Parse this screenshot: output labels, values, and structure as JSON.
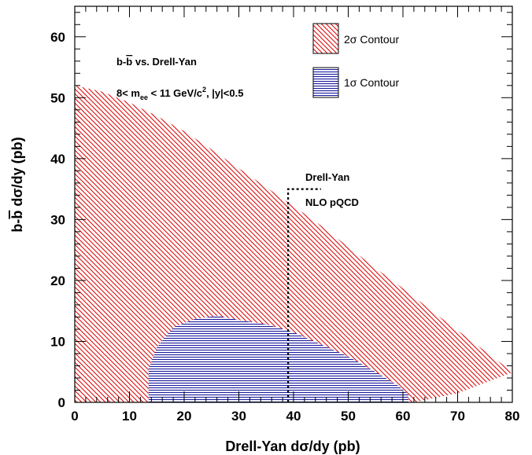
{
  "chart_data": {
    "type": "area",
    "xlabel_main": "Drell-Yan d",
    "xlabel_sym": "σ",
    "xlabel_tail": "/dy (pb)",
    "ylabel_b": "b-",
    "ylabel_bbar": "b",
    "ylabel_sp": " d",
    "ylabel_sym": "σ",
    "ylabel_tail": "/dy (pb)",
    "xlim": [
      0,
      80
    ],
    "ylim": [
      0,
      65
    ],
    "xticks": [
      0,
      10,
      20,
      30,
      40,
      50,
      60,
      70,
      80
    ],
    "xtick_labels": [
      "0",
      "10",
      "20",
      "30",
      "40",
      "50",
      "60",
      "70",
      "80"
    ],
    "yticks": [
      0,
      10,
      20,
      30,
      40,
      50,
      60
    ],
    "ytick_labels": [
      "0",
      "10",
      "20",
      "30",
      "40",
      "50",
      "60"
    ],
    "annotation": {
      "l1_b": "b-",
      "l1_bbar": "b",
      "l1_rest": " vs. Drell-Yan",
      "l2_a": "8< m",
      "l2_sub": "ee",
      "l2_b": " < 11 GeV/c",
      "l2_sup": "2",
      "l2_c": ", |y|<0.5"
    },
    "theory_label_1": "Drell-Yan",
    "theory_label_2": "NLO pQCD",
    "theory_point": {
      "x": 39,
      "y": 35
    },
    "theory_hline_end_x": 45,
    "legend": [
      {
        "num": "2",
        "sym": "σ",
        "rest": " Contour",
        "color": "#dd0000"
      },
      {
        "num": "1",
        "sym": "σ",
        "rest": " Contour",
        "color": "#1a1aa0"
      }
    ],
    "series": [
      {
        "name": "2σ Contour",
        "color": "#dd0000",
        "upper": [
          [
            0,
            52
          ],
          [
            5,
            51
          ],
          [
            10,
            49.2
          ],
          [
            15,
            47
          ],
          [
            20,
            44.5
          ],
          [
            25,
            41.5
          ],
          [
            30,
            38.4
          ],
          [
            35,
            35.3
          ],
          [
            40,
            32.2
          ],
          [
            45,
            29
          ],
          [
            50,
            25.5
          ],
          [
            55,
            22
          ],
          [
            60,
            18.7
          ],
          [
            65,
            15.2
          ],
          [
            70,
            11.8
          ],
          [
            75,
            8.4
          ],
          [
            80,
            5
          ]
        ],
        "lower": [
          [
            0,
            0
          ],
          [
            62,
            0
          ],
          [
            70,
            1.5
          ],
          [
            80,
            4.9
          ]
        ]
      },
      {
        "name": "1σ Contour",
        "color": "#1a1aa0",
        "outline": [
          [
            13.5,
            0
          ],
          [
            13.5,
            5.5
          ],
          [
            15,
            9
          ],
          [
            18,
            12.3
          ],
          [
            22,
            13.7
          ],
          [
            26,
            14.2
          ],
          [
            30,
            13.5
          ],
          [
            35,
            12.8
          ],
          [
            40,
            11.5
          ],
          [
            45,
            9.5
          ],
          [
            50,
            7.5
          ],
          [
            55,
            5
          ],
          [
            59,
            2.8
          ],
          [
            61,
            1.3
          ],
          [
            61,
            0
          ]
        ]
      }
    ]
  }
}
